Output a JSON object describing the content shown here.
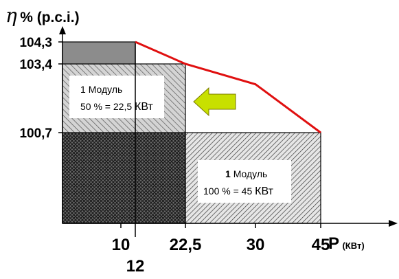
{
  "chart_data": {
    "type": "area",
    "y_axis_title": {
      "symbol": "η",
      "suffix": "% (p.c.i.)"
    },
    "x_axis_unit": {
      "main": "P",
      "unit": "(КВт)"
    },
    "y_ticks": [
      {
        "value": 104.3,
        "label": "104,3"
      },
      {
        "value": 103.4,
        "label": "103,4"
      },
      {
        "value": 100.7,
        "label": "100,7"
      }
    ],
    "x_ticks": [
      {
        "value": 10,
        "label": "10",
        "row": 1
      },
      {
        "value": 12,
        "label": "12",
        "row": 2
      },
      {
        "value": 22.5,
        "label": "22,5",
        "row": 1
      },
      {
        "value": 30,
        "label": "30",
        "row": 1
      },
      {
        "value": 45,
        "label": "45",
        "row": 1
      }
    ],
    "efficiency_curve": {
      "color": "#e01010",
      "points": [
        [
          12,
          104.3
        ],
        [
          22.5,
          103.4
        ],
        [
          30,
          102.6
        ],
        [
          45,
          100.7
        ]
      ]
    },
    "regions": [
      {
        "name": "1 Модуль 50 %",
        "x_max": 22.5,
        "y_max": 103.4
      },
      {
        "name": "1 Модуль 100 %",
        "x_max": 45,
        "y_max": 100.7
      },
      {
        "name": "overlap",
        "x_max": 22.5,
        "y_max": 100.7
      },
      {
        "name": "top",
        "x_max": 12,
        "y_max": 104.3,
        "color": "#8c8c8c"
      }
    ],
    "annotations": [
      {
        "name": "half-load",
        "line1_num": "1",
        "line1_word": "Модуль",
        "line2_prefix": "50 % = 22,5",
        "line2_unit": "КВт"
      },
      {
        "name": "full-load",
        "line1_num": "1",
        "line1_word": "Модуль",
        "line2_prefix": "100 % = 45",
        "line2_unit": "КВт"
      }
    ],
    "arrow": {
      "direction": "left",
      "fill": "#c8e000"
    }
  }
}
